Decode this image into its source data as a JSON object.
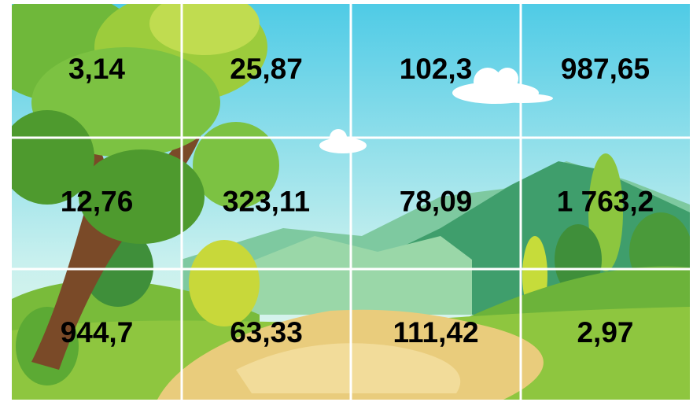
{
  "grid": {
    "rows": [
      [
        "3,14",
        "25,87",
        "102,3",
        "987,65"
      ],
      [
        "12,76",
        "323,11",
        "78,09",
        "1 763,2"
      ],
      [
        "944,7",
        "63,33",
        "111,42",
        "2,97"
      ]
    ]
  }
}
